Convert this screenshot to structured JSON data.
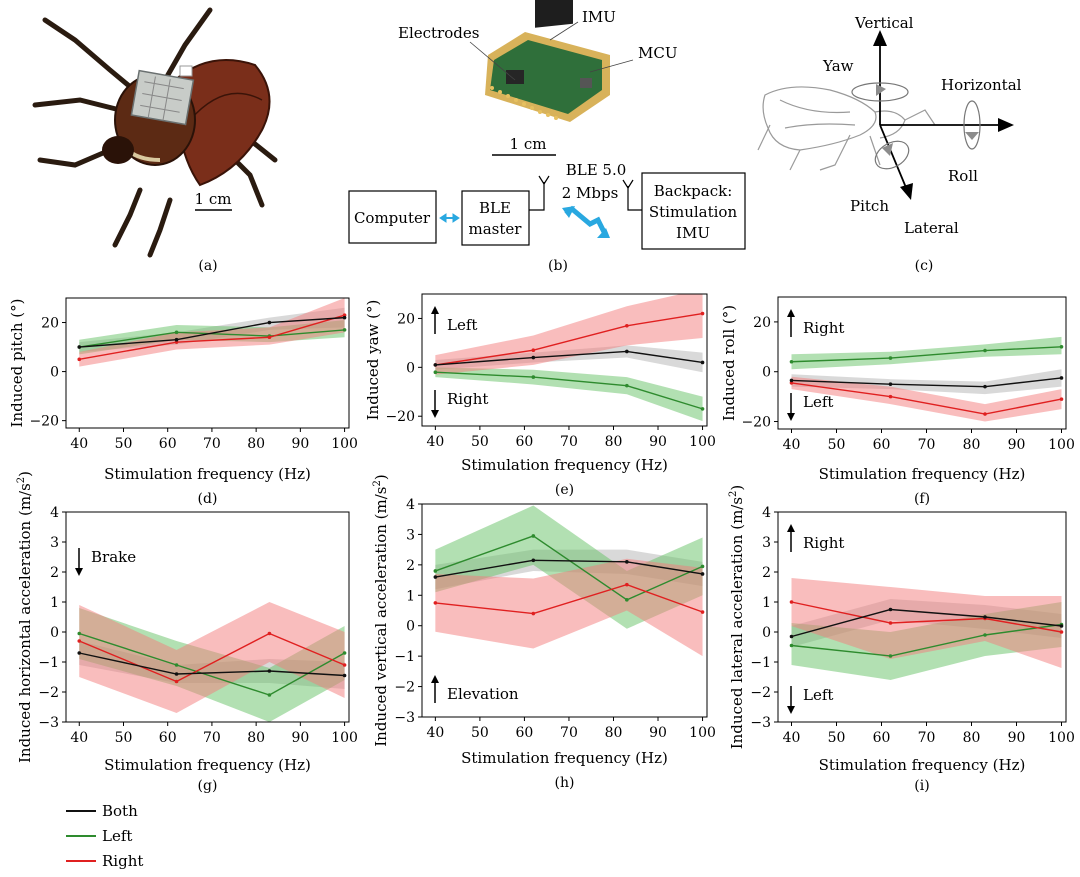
{
  "panels": {
    "a": {
      "caption": "(a)",
      "scale_label": "1 cm"
    },
    "b": {
      "caption": "(b)",
      "board_labels": {
        "electrodes": "Electrodes",
        "imu": "IMU",
        "mcu": "MCU"
      },
      "scale_label": "1 cm",
      "link_label_1": "BLE 5.0",
      "link_label_2": "2 Mbps",
      "box_computer": "Computer",
      "box_ble_line1": "BLE",
      "box_ble_line2": "master",
      "box_backpack_line1": "Backpack:",
      "box_backpack_line2": "Stimulation",
      "box_backpack_line3": "IMU"
    },
    "c": {
      "caption": "(c)",
      "axes": {
        "vertical": "Vertical",
        "horizontal": "Horizontal",
        "lateral": "Lateral",
        "yaw": "Yaw",
        "roll": "Roll",
        "pitch": "Pitch"
      }
    }
  },
  "colors": {
    "both": "#111111",
    "left": "#2e8b2e",
    "right": "#e02020",
    "both_band": "#b4b4b4",
    "left_band": "#66c266",
    "right_band": "#f37b7b"
  },
  "legend": {
    "both": "Both",
    "left": "Left",
    "right": "Right"
  },
  "chart_data": [
    {
      "id": "d",
      "type": "line",
      "caption": "(d)",
      "ylabel": "Induced pitch (°)",
      "xlabel": "Stimulation frequency (Hz)",
      "xlim": [
        37,
        101
      ],
      "ylim": [
        -23,
        30
      ],
      "xticks": [
        40,
        50,
        60,
        70,
        80,
        90,
        100
      ],
      "yticks": [
        -20,
        0,
        20
      ],
      "grid": false,
      "legend": "bottom-left",
      "annotations": [],
      "x": [
        40,
        62,
        83,
        100
      ],
      "series": [
        {
          "name": "Both",
          "values": [
            10,
            13,
            20,
            22
          ],
          "lower": [
            8,
            11,
            17,
            18
          ],
          "upper": [
            12,
            16,
            22,
            26
          ]
        },
        {
          "name": "Left",
          "values": [
            10,
            16,
            14.5,
            17
          ],
          "lower": [
            7,
            13,
            12,
            14
          ],
          "upper": [
            13,
            19,
            18,
            21
          ]
        },
        {
          "name": "Right",
          "values": [
            5,
            12,
            14,
            23
          ],
          "lower": [
            2,
            9,
            11,
            16
          ],
          "upper": [
            8,
            16,
            18,
            30
          ]
        }
      ]
    },
    {
      "id": "e",
      "type": "line",
      "caption": "(e)",
      "ylabel": "Induced yaw (°)",
      "xlabel": "Stimulation frequency (Hz)",
      "xlim": [
        37,
        101
      ],
      "ylim": [
        -24,
        30
      ],
      "xticks": [
        40,
        50,
        60,
        70,
        80,
        90,
        100
      ],
      "yticks": [
        -20,
        0,
        20
      ],
      "grid": false,
      "legend": "bottom-left",
      "annotations": [
        {
          "text": "Left",
          "arrow": "up"
        },
        {
          "text": "Right",
          "arrow": "down"
        }
      ],
      "x": [
        40,
        62,
        83,
        100
      ],
      "series": [
        {
          "name": "Both",
          "values": [
            1,
            4,
            6.5,
            2
          ],
          "lower": [
            -1,
            2,
            4,
            -2
          ],
          "upper": [
            3,
            6,
            9,
            6
          ]
        },
        {
          "name": "Left",
          "values": [
            -2,
            -4,
            -7.5,
            -17
          ],
          "lower": [
            -4,
            -7,
            -11,
            -22
          ],
          "upper": [
            0,
            -1,
            -4,
            -12
          ]
        },
        {
          "name": "Right",
          "values": [
            1,
            7,
            17,
            22
          ],
          "lower": [
            -3,
            1,
            9,
            12
          ],
          "upper": [
            5,
            13,
            25,
            32
          ]
        }
      ]
    },
    {
      "id": "f",
      "type": "line",
      "caption": "(f)",
      "ylabel": "Induced roll (°)",
      "xlabel": "Stimulation frequency (Hz)",
      "xlim": [
        37,
        101
      ],
      "ylim": [
        -23,
        30
      ],
      "xticks": [
        40,
        50,
        60,
        70,
        80,
        90,
        100
      ],
      "yticks": [
        -20,
        0,
        20
      ],
      "grid": false,
      "legend": "bottom-left",
      "annotations": [
        {
          "text": "Right",
          "arrow": "up"
        },
        {
          "text": "Left",
          "arrow": "down"
        }
      ],
      "x": [
        40,
        62,
        83,
        100
      ],
      "series": [
        {
          "name": "Both",
          "values": [
            -3.5,
            -5,
            -6,
            -2.5
          ],
          "lower": [
            -6,
            -7,
            -9,
            -6
          ],
          "upper": [
            -1,
            -3,
            -4,
            1
          ]
        },
        {
          "name": "Left",
          "values": [
            4,
            5.5,
            8.5,
            10
          ],
          "lower": [
            1,
            3,
            6,
            7
          ],
          "upper": [
            7,
            8,
            11,
            14
          ]
        },
        {
          "name": "Right",
          "values": [
            -4.5,
            -10,
            -17,
            -11
          ],
          "lower": [
            -7,
            -13,
            -20,
            -15
          ],
          "upper": [
            -2,
            -6,
            -13,
            -7
          ]
        }
      ]
    },
    {
      "id": "g",
      "type": "line",
      "caption": "(g)",
      "ylabel": "Induced horizontal acceleration (m/s²)",
      "xlabel": "Stimulation frequency (Hz)",
      "xlim": [
        37,
        101
      ],
      "ylim": [
        -3,
        4
      ],
      "xticks": [
        40,
        50,
        60,
        70,
        80,
        90,
        100
      ],
      "yticks": [
        -3,
        -2,
        -1,
        0,
        1,
        2,
        3,
        4
      ],
      "grid": false,
      "legend": "bottom-left",
      "annotations": [
        {
          "text": "Brake",
          "arrow": "down"
        }
      ],
      "x": [
        40,
        62,
        83,
        100
      ],
      "series": [
        {
          "name": "Both",
          "values": [
            -0.7,
            -1.4,
            -1.3,
            -1.45
          ],
          "lower": [
            -1.1,
            -1.7,
            -1.7,
            -1.9
          ],
          "upper": [
            -0.3,
            -1.1,
            -0.9,
            -1.0
          ]
        },
        {
          "name": "Left",
          "values": [
            -0.05,
            -1.1,
            -2.1,
            -0.7
          ],
          "lower": [
            -0.9,
            -1.8,
            -3.0,
            -1.6
          ],
          "upper": [
            0.8,
            -0.3,
            -1.2,
            0.2
          ]
        },
        {
          "name": "Right",
          "values": [
            -0.3,
            -1.65,
            -0.05,
            -1.1
          ],
          "lower": [
            -1.5,
            -2.7,
            -1.0,
            -2.2
          ],
          "upper": [
            0.9,
            -0.6,
            1.0,
            0.0
          ]
        }
      ]
    },
    {
      "id": "h",
      "type": "line",
      "caption": "(h)",
      "ylabel": "Induced vertical acceleration (m/s²)",
      "xlabel": "Stimulation frequency (Hz)",
      "xlim": [
        37,
        101
      ],
      "ylim": [
        -3,
        4
      ],
      "xticks": [
        40,
        50,
        60,
        70,
        80,
        90,
        100
      ],
      "yticks": [
        -3,
        -2,
        -1,
        0,
        1,
        2,
        3,
        4
      ],
      "grid": false,
      "legend": "bottom-left",
      "annotations": [
        {
          "text": "Elevation",
          "arrow": "up"
        }
      ],
      "x": [
        40,
        62,
        83,
        100
      ],
      "series": [
        {
          "name": "Both",
          "values": [
            1.6,
            2.15,
            2.1,
            1.7
          ],
          "lower": [
            1.2,
            1.8,
            1.7,
            1.3
          ],
          "upper": [
            2.0,
            2.5,
            2.5,
            2.1
          ]
        },
        {
          "name": "Left",
          "values": [
            1.8,
            2.95,
            0.85,
            1.95
          ],
          "lower": [
            1.1,
            2.0,
            -0.1,
            1.0
          ],
          "upper": [
            2.5,
            3.95,
            1.8,
            2.9
          ]
        },
        {
          "name": "Right",
          "values": [
            0.75,
            0.4,
            1.35,
            0.45
          ],
          "lower": [
            -0.2,
            -0.75,
            0.5,
            -1.0
          ],
          "upper": [
            1.7,
            1.55,
            2.2,
            1.9
          ]
        }
      ]
    },
    {
      "id": "i",
      "type": "line",
      "caption": "(i)",
      "ylabel": "Induced lateral acceleration (m/s²)",
      "xlabel": "Stimulation frequency (Hz)",
      "xlim": [
        37,
        101
      ],
      "ylim": [
        -3,
        4
      ],
      "xticks": [
        40,
        50,
        60,
        70,
        80,
        90,
        100
      ],
      "yticks": [
        -3,
        -2,
        -1,
        0,
        1,
        2,
        3,
        4
      ],
      "grid": false,
      "legend": "bottom-left",
      "annotations": [
        {
          "text": "Right",
          "arrow": "up"
        },
        {
          "text": "Left",
          "arrow": "down"
        }
      ],
      "x": [
        40,
        62,
        83,
        100
      ],
      "series": [
        {
          "name": "Both",
          "values": [
            -0.15,
            0.75,
            0.5,
            0.2
          ],
          "lower": [
            -0.5,
            0.4,
            0.1,
            -0.2
          ],
          "upper": [
            0.2,
            1.1,
            0.9,
            0.6
          ]
        },
        {
          "name": "Left",
          "values": [
            -0.45,
            -0.8,
            -0.1,
            0.25
          ],
          "lower": [
            -1.1,
            -1.6,
            -0.8,
            -0.5
          ],
          "upper": [
            0.3,
            0.0,
            0.6,
            1.0
          ]
        },
        {
          "name": "Right",
          "values": [
            1.0,
            0.3,
            0.45,
            0.0
          ],
          "lower": [
            0.2,
            -0.9,
            -0.3,
            -1.2
          ],
          "upper": [
            1.8,
            1.5,
            1.2,
            1.2
          ]
        }
      ]
    }
  ]
}
